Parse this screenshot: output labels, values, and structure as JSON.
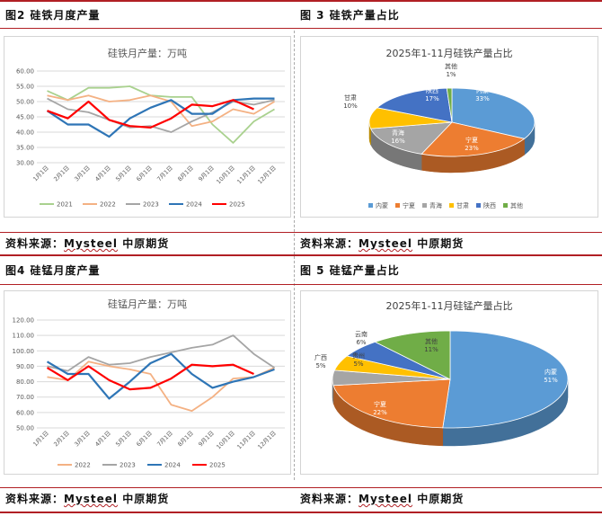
{
  "figures": {
    "fig2_title": "图2 硅铁月度产量",
    "fig3_title": "图 3 硅铁产量占比",
    "fig4_title": "图4 硅锰月度产量",
    "fig5_title": "图 5 硅锰产量占比"
  },
  "sources": {
    "prefix": "资料来源：",
    "brand": "Mysteel",
    "suffix": " 中原期货"
  },
  "colors": {
    "accent_red": "#b11f24",
    "s2021": "#a9d18e",
    "s2022": "#f4b183",
    "s2023": "#a5a5a5",
    "s2024": "#2e75b6",
    "s2025": "#ff0000",
    "pie_blue": "#5b9bd5",
    "pie_orange": "#ed7d31",
    "pie_gray": "#a5a5a5",
    "pie_yellow": "#ffc000",
    "pie_darkblue": "#4472c4",
    "pie_green": "#70ad47"
  },
  "chart_data": [
    {
      "type": "line",
      "title": "硅铁月产量：万吨",
      "categories": [
        "1月1日",
        "2月1日",
        "3月1日",
        "4月1日",
        "5月1日",
        "6月1日",
        "7月1日",
        "8月1日",
        "9月1日",
        "10月1日",
        "11月1日",
        "12月1日"
      ],
      "y_ticks": [
        "60.00",
        "55.00",
        "50.00",
        "45.00",
        "40.00",
        "35.00",
        "30.00"
      ],
      "ylim": [
        30,
        60
      ],
      "grid": true,
      "legend_position": "bottom",
      "series": [
        {
          "name": "2021",
          "color_key": "s2021",
          "values": [
            53.5,
            50.5,
            54.5,
            54.5,
            55,
            52,
            51.5,
            51.5,
            42.5,
            36.5,
            43.5,
            47.5
          ]
        },
        {
          "name": "2022",
          "color_key": "s2022",
          "values": [
            52,
            50.5,
            52,
            50,
            50.5,
            52,
            50,
            42,
            43.5,
            47.5,
            46,
            50
          ]
        },
        {
          "name": "2023",
          "color_key": "s2023",
          "values": [
            51,
            47.5,
            46.5,
            44,
            41.5,
            42,
            40,
            43.5,
            46.5,
            50,
            49,
            50.5
          ]
        },
        {
          "name": "2024",
          "color_key": "s2024",
          "values": [
            47,
            42.5,
            42.5,
            38.5,
            44.5,
            48,
            50.5,
            46,
            46,
            50.5,
            51,
            51
          ]
        },
        {
          "name": "2025",
          "color_key": "s2025",
          "values": [
            47,
            44.5,
            50,
            44,
            42,
            41.5,
            44.5,
            49,
            48.5,
            50.5,
            47.5,
            null
          ]
        }
      ]
    },
    {
      "type": "pie",
      "title": "2025年1-11月硅铁产量占比",
      "legend_position": "bottom",
      "slices": [
        {
          "name": "内蒙",
          "value": 33,
          "label": "33%",
          "color_key": "pie_blue"
        },
        {
          "name": "宁夏",
          "value": 23,
          "label": "23%",
          "color_key": "pie_orange"
        },
        {
          "name": "青海",
          "value": 16,
          "label": "16%",
          "color_key": "pie_gray"
        },
        {
          "name": "甘肃",
          "value": 10,
          "label": "10%",
          "color_key": "pie_yellow"
        },
        {
          "name": "陕西",
          "value": 17,
          "label": "17%",
          "color_key": "pie_darkblue"
        },
        {
          "name": "其他",
          "value": 1,
          "label": "1%",
          "color_key": "pie_green"
        }
      ]
    },
    {
      "type": "line",
      "title": "硅锰月产量：万吨",
      "categories": [
        "1月1日",
        "2月1日",
        "3月1日",
        "4月1日",
        "5月1日",
        "6月1日",
        "7月1日",
        "8月1日",
        "9月1日",
        "10月1日",
        "11月1日",
        "12月1日"
      ],
      "y_ticks": [
        "120.00",
        "110.00",
        "100.00",
        "90.00",
        "80.00",
        "70.00",
        "60.00",
        "50.00"
      ],
      "ylim": [
        50,
        120
      ],
      "grid": true,
      "legend_position": "bottom",
      "series": [
        {
          "name": "2022",
          "color_key": "s2022",
          "values": [
            83,
            81,
            93,
            90,
            88,
            85,
            65,
            61,
            70,
            82,
            83,
            89
          ]
        },
        {
          "name": "2023",
          "color_key": "s2023",
          "values": [
            90,
            87,
            96,
            91,
            92,
            96,
            99,
            102,
            104,
            110,
            98,
            89
          ]
        },
        {
          "name": "2024",
          "color_key": "s2024",
          "values": [
            93,
            85,
            85,
            69,
            80,
            92,
            98,
            85,
            76,
            80,
            83,
            88
          ]
        },
        {
          "name": "2025",
          "color_key": "s2025",
          "values": [
            89,
            81,
            90,
            81,
            75,
            76,
            82,
            91,
            90,
            91,
            85,
            null
          ]
        }
      ]
    },
    {
      "type": "pie",
      "title": "2025年1-11月硅锰产量占比",
      "slices": [
        {
          "name": "内蒙",
          "value": 51,
          "label": "51%",
          "color_key": "pie_blue"
        },
        {
          "name": "宁夏",
          "value": 22,
          "label": "22%",
          "color_key": "pie_orange"
        },
        {
          "name": "广西",
          "value": 5,
          "label": "5%",
          "color_key": "pie_gray"
        },
        {
          "name": "贵州",
          "value": 5,
          "label": "5%",
          "color_key": "pie_yellow"
        },
        {
          "name": "云南",
          "value": 6,
          "label": "6%",
          "color_key": "pie_darkblue"
        },
        {
          "name": "其他",
          "value": 11,
          "label": "11%",
          "color_key": "pie_green"
        }
      ]
    }
  ]
}
